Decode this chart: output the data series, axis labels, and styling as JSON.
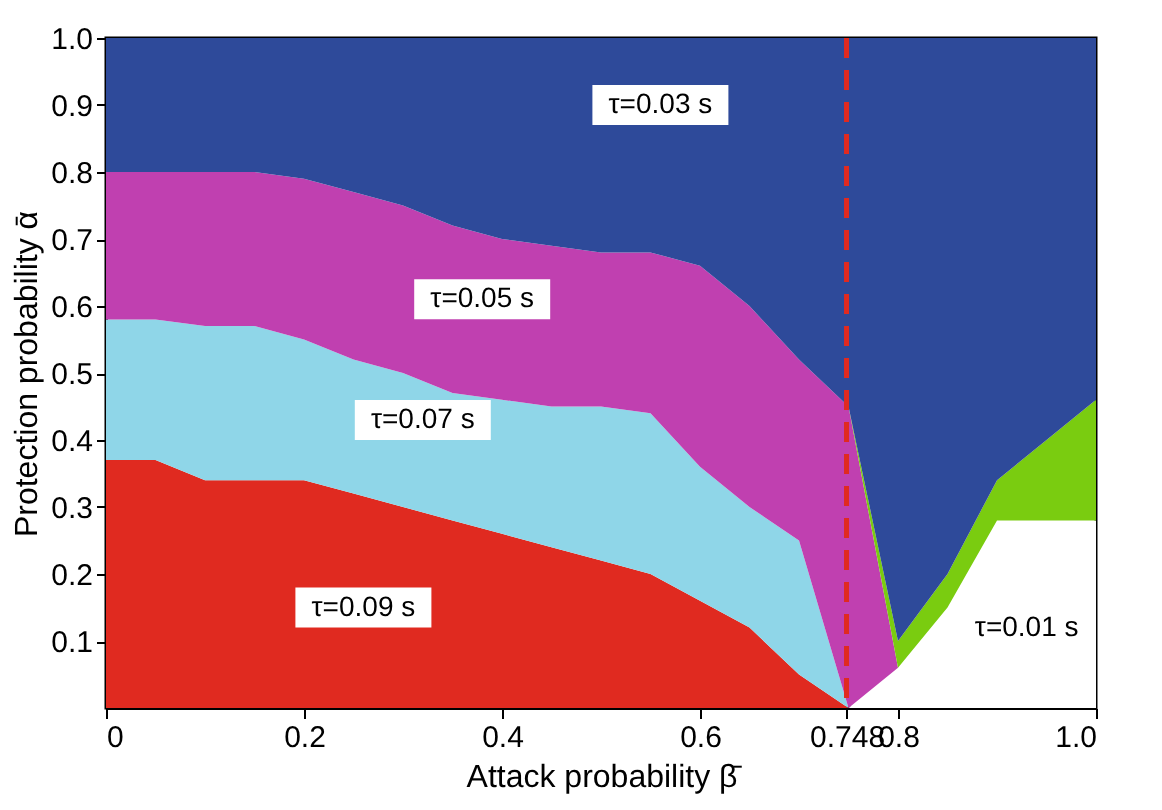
{
  "chart_data": {
    "type": "area",
    "stacked": true,
    "xlabel": "Attack probability β̄",
    "ylabel": "Protection probability ᾱ",
    "x": [
      0,
      0.05,
      0.1,
      0.15,
      0.2,
      0.25,
      0.3,
      0.35,
      0.4,
      0.45,
      0.5,
      0.55,
      0.6,
      0.65,
      0.7,
      0.75,
      0.8,
      0.85,
      0.9,
      0.95,
      1.0
    ],
    "series": [
      {
        "color": "#ffffff",
        "values": [
          0,
          0,
          0,
          0,
          0,
          0,
          0,
          0,
          0,
          0,
          0,
          0,
          0,
          0,
          0,
          0,
          0.06,
          0.15,
          0.28,
          0.28,
          0.28
        ]
      },
      {
        "color": "#e02a20",
        "values": [
          0.37,
          0.37,
          0.34,
          0.34,
          0.34,
          0.32,
          0.3,
          0.28,
          0.26,
          0.24,
          0.22,
          0.2,
          0.16,
          0.12,
          0.05,
          0,
          0,
          0,
          0,
          0,
          0
        ]
      },
      {
        "color": "#8fd6e8",
        "values": [
          0.21,
          0.21,
          0.23,
          0.23,
          0.21,
          0.2,
          0.2,
          0.19,
          0.2,
          0.21,
          0.23,
          0.24,
          0.2,
          0.18,
          0.2,
          0,
          0,
          0,
          0,
          0,
          0
        ]
      },
      {
        "color": "#c040b0",
        "values": [
          0.22,
          0.22,
          0.23,
          0.23,
          0.24,
          0.25,
          0.25,
          0.25,
          0.24,
          0.24,
          0.23,
          0.24,
          0.3,
          0.3,
          0.27,
          0.45,
          0,
          0,
          0,
          0,
          0
        ]
      },
      {
        "color": "#7acc10",
        "values": [
          0,
          0,
          0,
          0,
          0,
          0,
          0,
          0,
          0,
          0,
          0,
          0,
          0,
          0,
          0,
          0,
          0.04,
          0.05,
          0.06,
          0.12,
          0.18
        ]
      },
      {
        "color": "#2e4a9a",
        "values": [
          0.2,
          0.2,
          0.2,
          0.2,
          0.21,
          0.23,
          0.25,
          0.28,
          0.3,
          0.31,
          0.32,
          0.32,
          0.34,
          0.4,
          0.48,
          0.55,
          0.9,
          0.8,
          0.66,
          0.6,
          0.54
        ]
      }
    ],
    "xlim": [
      0,
      1
    ],
    "ylim": [
      0,
      1
    ],
    "xticks": [
      {
        "value": 0,
        "label": "0"
      },
      0.2,
      0.4,
      0.6,
      0.748,
      0.8,
      {
        "value": 1,
        "label": "1.0"
      }
    ],
    "yticks": [
      0.1,
      0.2,
      0.3,
      0.4,
      0.5,
      0.6,
      0.7,
      0.8,
      0.9,
      {
        "value": 1,
        "label": "1.0"
      }
    ],
    "ref_lines": [
      {
        "axis": "x",
        "value": 0.748,
        "color": "#e02a20",
        "line_style": "dashed"
      }
    ],
    "annotations": [
      "τ=0.03 s",
      "τ=0.05 s",
      "τ=0.07 s",
      "τ=0.09 s",
      "τ=0.01 s"
    ],
    "grid": false,
    "legend": false
  }
}
